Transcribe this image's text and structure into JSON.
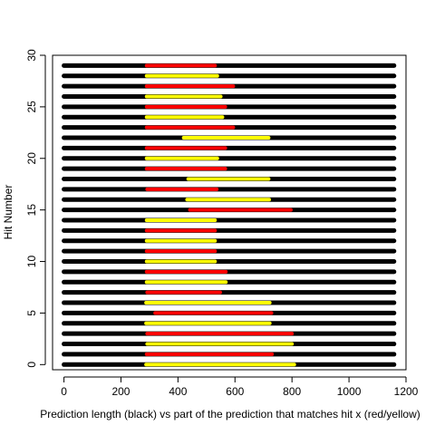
{
  "chart_data": {
    "type": "bar",
    "xlabel": "Prediction length (black) vs part of the prediction that matches hit x (red/yellow)",
    "ylabel": "Hit Number",
    "xlim": [
      -40,
      1200
    ],
    "ylim": [
      -0.5,
      30
    ],
    "xticks": [
      "0",
      "200",
      "400",
      "600",
      "800",
      "1000",
      "1200"
    ],
    "yticks": [
      "0",
      "5",
      "10",
      "15",
      "20",
      "25",
      "30"
    ],
    "prediction_length": {
      "start": 0,
      "end": 1158
    },
    "colors": {
      "prediction": "#000000",
      "match_a": "#ff0000",
      "match_b": "#ffff00"
    },
    "hits": [
      {
        "hit": 0,
        "start": 288,
        "end": 808,
        "color": "yellow"
      },
      {
        "hit": 1,
        "start": 290,
        "end": 730,
        "color": "red"
      },
      {
        "hit": 2,
        "start": 292,
        "end": 800,
        "color": "yellow"
      },
      {
        "hit": 3,
        "start": 292,
        "end": 800,
        "color": "red"
      },
      {
        "hit": 4,
        "start": 288,
        "end": 722,
        "color": "yellow"
      },
      {
        "hit": 5,
        "start": 320,
        "end": 728,
        "color": "red"
      },
      {
        "hit": 6,
        "start": 288,
        "end": 722,
        "color": "yellow"
      },
      {
        "hit": 7,
        "start": 292,
        "end": 548,
        "color": "red"
      },
      {
        "hit": 8,
        "start": 290,
        "end": 568,
        "color": "yellow"
      },
      {
        "hit": 9,
        "start": 290,
        "end": 568,
        "color": "red"
      },
      {
        "hit": 10,
        "start": 290,
        "end": 530,
        "color": "yellow"
      },
      {
        "hit": 11,
        "start": 290,
        "end": 530,
        "color": "red"
      },
      {
        "hit": 12,
        "start": 290,
        "end": 530,
        "color": "yellow"
      },
      {
        "hit": 13,
        "start": 290,
        "end": 530,
        "color": "red"
      },
      {
        "hit": 14,
        "start": 290,
        "end": 530,
        "color": "yellow"
      },
      {
        "hit": 15,
        "start": 442,
        "end": 796,
        "color": "red"
      },
      {
        "hit": 16,
        "start": 432,
        "end": 720,
        "color": "yellow"
      },
      {
        "hit": 17,
        "start": 292,
        "end": 536,
        "color": "red"
      },
      {
        "hit": 18,
        "start": 436,
        "end": 718,
        "color": "yellow"
      },
      {
        "hit": 19,
        "start": 290,
        "end": 566,
        "color": "red"
      },
      {
        "hit": 20,
        "start": 290,
        "end": 538,
        "color": "yellow"
      },
      {
        "hit": 21,
        "start": 290,
        "end": 566,
        "color": "red"
      },
      {
        "hit": 22,
        "start": 420,
        "end": 718,
        "color": "yellow"
      },
      {
        "hit": 23,
        "start": 290,
        "end": 594,
        "color": "red"
      },
      {
        "hit": 24,
        "start": 290,
        "end": 556,
        "color": "yellow"
      },
      {
        "hit": 25,
        "start": 290,
        "end": 566,
        "color": "red"
      },
      {
        "hit": 26,
        "start": 290,
        "end": 550,
        "color": "yellow"
      },
      {
        "hit": 27,
        "start": 290,
        "end": 594,
        "color": "red"
      },
      {
        "hit": 28,
        "start": 290,
        "end": 538,
        "color": "yellow"
      },
      {
        "hit": 29,
        "start": 290,
        "end": 530,
        "color": "red"
      }
    ]
  }
}
